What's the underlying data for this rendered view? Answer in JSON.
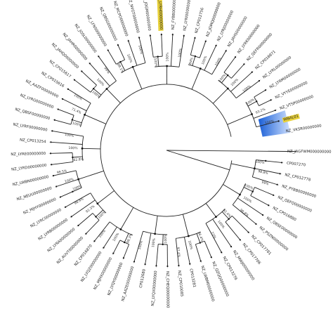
{
  "tree": {
    "leaves": [
      {
        "label": "NZ_JAGFWM000000000",
        "highlight": false
      },
      {
        "label": "CP007270",
        "highlight": false
      },
      {
        "label": "NZ_CP012778",
        "highlight": false
      },
      {
        "label": "NZ_PYBB00000000",
        "highlight": false
      },
      {
        "label": "NZ_QEFQ00000000",
        "highlight": false
      },
      {
        "label": "NZ_CP016880",
        "highlight": false
      },
      {
        "label": "NZ_QBSE00000000",
        "highlight": false
      },
      {
        "label": "NZ_PSZN00000000",
        "highlight": false
      },
      {
        "label": "NZ_CP017781",
        "highlight": false
      },
      {
        "label": "NZ_CP017706",
        "highlight": false
      },
      {
        "label": "NZ_MWJI00000000",
        "highlight": false
      },
      {
        "label": "NZ_CP013276",
        "highlight": false
      },
      {
        "label": "NZ_QZQQ00000000",
        "highlight": false
      },
      {
        "label": "NZ_LWBM00000000",
        "highlight": false
      },
      {
        "label": "CP013281",
        "highlight": false
      },
      {
        "label": "NZ_CP010085",
        "highlight": false
      },
      {
        "label": "NZ_CHEQ00000000",
        "highlight": false
      },
      {
        "label": "NZ_LYQX00000000",
        "highlight": false
      },
      {
        "label": "CP012680",
        "highlight": false
      },
      {
        "label": "NZ_AAZE00000000",
        "highlight": false
      },
      {
        "label": "NZ_LYQY00000000",
        "highlight": false
      },
      {
        "label": "NZ_MJHX00000000",
        "highlight": false
      },
      {
        "label": "NZ_LYQZ00000000",
        "highlight": false
      },
      {
        "label": "NZ_CP016870",
        "highlight": false
      },
      {
        "label": "NZ_AUVT00000000",
        "highlight": false
      },
      {
        "label": "NZ_LYRA00000000",
        "highlight": false
      },
      {
        "label": "NZ_LYRB00000000",
        "highlight": false
      },
      {
        "label": "NZ_LYRC00000000",
        "highlight": false
      },
      {
        "label": "NZ_MJHY00000000",
        "highlight": false
      },
      {
        "label": "NZ_NEUU00000000",
        "highlight": false
      },
      {
        "label": "NZ_LWBN00000000",
        "highlight": false
      },
      {
        "label": "NZ_LYRD00000000",
        "highlight": false
      },
      {
        "label": "NZ_LYRE00000000",
        "highlight": false
      },
      {
        "label": "NZ_CP013254",
        "highlight": false
      },
      {
        "label": "NZ_LYRF00000000",
        "highlight": false
      },
      {
        "label": "NZ_QBSF00000000",
        "highlight": false
      },
      {
        "label": "NZ_LYRG00000000",
        "highlight": false
      },
      {
        "label": "NZ_AAZF00000000",
        "highlight": false
      },
      {
        "label": "NZ_CP015616",
        "highlight": false
      },
      {
        "label": "NZ_CP015617",
        "highlight": false
      },
      {
        "label": "NZ_JAHQ00000000",
        "highlight": false
      },
      {
        "label": "NZ_JAHR00000000",
        "highlight": false
      },
      {
        "label": "NZ_JOSL00000000",
        "highlight": false
      },
      {
        "label": "NZ_LFNS00000000",
        "highlight": false
      },
      {
        "label": "NZ_QBSG00000000",
        "highlight": false
      },
      {
        "label": "NZ_MCPO00000000",
        "highlight": false
      },
      {
        "label": "NZ_NVGT00000000",
        "highlight": false
      },
      {
        "label": "NZ_JOGM00000000",
        "highlight": false
      },
      {
        "label": "NZ_LYRH00000000",
        "highlight": true
      },
      {
        "label": "NZ_FYBB00000000",
        "highlight": false
      },
      {
        "label": "NZ_LYRI00000000",
        "highlight": false
      },
      {
        "label": "NZ_CP012756",
        "highlight": false
      },
      {
        "label": "NZ_JGMQ00000000",
        "highlight": false
      },
      {
        "label": "NZ_LYRJ00000000",
        "highlight": false
      },
      {
        "label": "NZ_JAHS00000000",
        "highlight": false
      },
      {
        "label": "NZ_LYRK00000000",
        "highlight": false
      },
      {
        "label": "NZ_QEFR00000000",
        "highlight": false
      },
      {
        "label": "NZ_CP016871",
        "highlight": false
      },
      {
        "label": "NZ_LYRL00000000",
        "highlight": false
      },
      {
        "label": "NZ_LYRM00000000",
        "highlight": false
      },
      {
        "label": "NZ_VYYE00000000",
        "highlight": false
      },
      {
        "label": "NZ_VTSP00000000",
        "highlight": false
      },
      {
        "label": "WBAL01",
        "highlight": true
      },
      {
        "label": "NZ_VKSR00000000",
        "highlight": false
      }
    ],
    "support_values": [
      "100%",
      "98.8%",
      "99%",
      "100%",
      "100%",
      "98.8%",
      "92.4%",
      "100%",
      "73%",
      "56.4%",
      "100%",
      "97.4%",
      "100%",
      "100%",
      "100%",
      "98.3%",
      "100%",
      "100%",
      "100%",
      "92.3%",
      "98.4%",
      "100%",
      "100%",
      "99.5%",
      "62.8%",
      "100%",
      "100%",
      "100%",
      "71.4%",
      "100%",
      "100%",
      "100%",
      "99%",
      "88.1%",
      "100%",
      "100%",
      "100%",
      "100%",
      "100%",
      "84%",
      "100%",
      "100%",
      "100%",
      "100%",
      "100%",
      "100%",
      "93.2%",
      "100%",
      "56.4%",
      "100%"
    ],
    "colors": {
      "branch": "#222222",
      "guide": "#9a9a9a",
      "leaf_highlight": "#e8d13b",
      "clade_highlight_from": "#1a5fd6",
      "clade_highlight_to": "#cfe0ff"
    }
  }
}
